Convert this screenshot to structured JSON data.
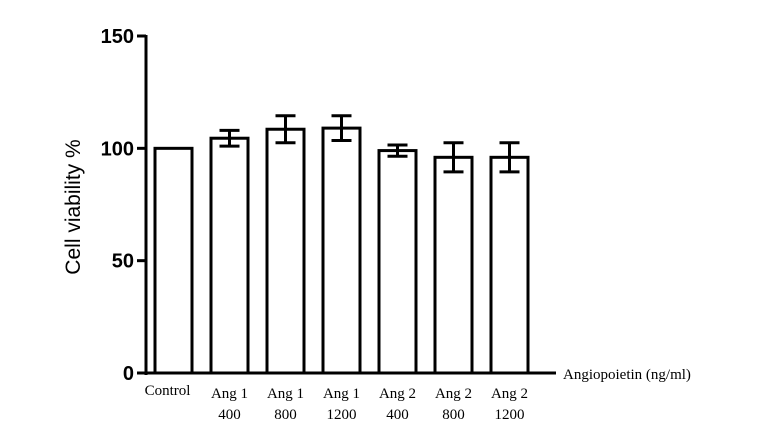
{
  "chart_data": {
    "type": "bar",
    "title": "",
    "ylabel": "Cell viability %",
    "xlabel": "Angiopoietin (ng/ml)",
    "ylim": [
      0,
      150
    ],
    "yticks": [
      "0",
      "50",
      "100",
      "150"
    ],
    "grid": false,
    "legend": "none",
    "categories": [
      [
        "Control"
      ],
      [
        "Ang 1",
        "400"
      ],
      [
        "Ang 1",
        "800"
      ],
      [
        "Ang 1",
        "1200"
      ],
      [
        "Ang 2",
        "400"
      ],
      [
        "Ang 2",
        "800"
      ],
      [
        "Ang 2",
        "1200"
      ]
    ],
    "values": [
      100,
      104.5,
      108.5,
      109,
      99,
      96,
      96
    ],
    "errors": [
      0,
      3.5,
      6,
      5.5,
      2.5,
      6.5,
      6.5
    ],
    "colors": {
      "bar_fill": "#ffffff",
      "stroke": "#000000"
    }
  }
}
